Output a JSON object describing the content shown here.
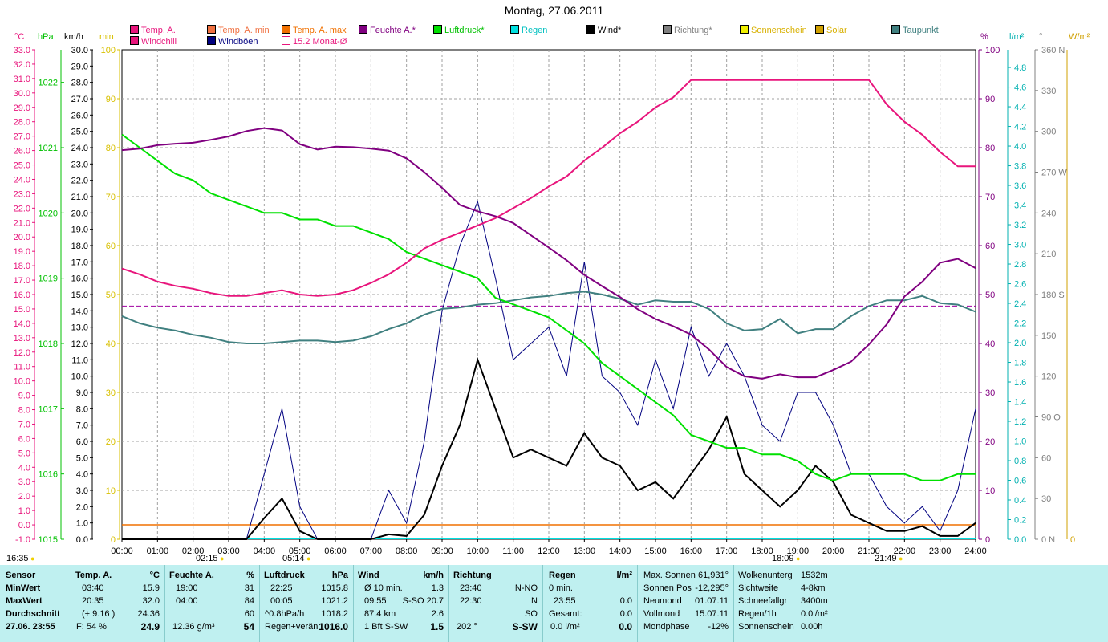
{
  "title": "Montag, 27.06.2011",
  "legend": [
    {
      "label": "Temp. A.",
      "color": "#e8157c"
    },
    {
      "label": "Temp. A. min",
      "color": "#f07040"
    },
    {
      "label": "Temp. A. max",
      "color": "#f07000"
    },
    {
      "label": "Feuchte A.*",
      "color": "#800080"
    },
    {
      "label": "Luftdruck*",
      "color": "#00e000"
    },
    {
      "label": "Regen",
      "color": "#00e0e0"
    },
    {
      "label": "Wind*",
      "color": "#000000"
    },
    {
      "label": "Richtung*",
      "color": "#808080"
    },
    {
      "label": "Sonnenschein",
      "color": "#f0f000"
    },
    {
      "label": "Solar",
      "color": "#d0a000"
    },
    {
      "label": "Taupunkt",
      "color": "#408080"
    },
    {
      "label": "Windchill",
      "color": "#e8157c"
    },
    {
      "label": "Windböen",
      "color": "#000080"
    },
    {
      "label": "15.2 Monat-Ø",
      "color": "#ffffff"
    }
  ],
  "units": {
    "c": "°C",
    "hpa": "hPa",
    "kmh": "km/h",
    "min": "min",
    "pct": "%",
    "lm2": "l/m²",
    "deg": "°",
    "wm2": "W/m²"
  },
  "axes": {
    "temp": [
      "33.0",
      "32.0",
      "31.0",
      "30.0",
      "29.0",
      "28.0",
      "27.0",
      "26.0",
      "25.0",
      "24.0",
      "23.0",
      "22.0",
      "21.0",
      "20.0",
      "19.0",
      "18.0",
      "17.0",
      "16.0",
      "15.0",
      "14.0",
      "13.0",
      "12.0",
      "11.0",
      "10.0",
      "9.0",
      "8.0",
      "7.0",
      "6.0",
      "5.0",
      "4.0",
      "3.0",
      "2.0",
      "1.0",
      "0.0",
      "-1.0"
    ],
    "hpa": [
      "1022",
      "1021",
      "1020",
      "1019",
      "1018",
      "1017",
      "1016",
      "1015"
    ],
    "kmh": [
      "30.0",
      "29.0",
      "28.0",
      "27.0",
      "26.0",
      "25.0",
      "24.0",
      "23.0",
      "22.0",
      "21.0",
      "20.0",
      "19.0",
      "18.0",
      "17.0",
      "16.0",
      "15.0",
      "14.0",
      "13.0",
      "12.0",
      "11.0",
      "10.0",
      "9.0",
      "8.0",
      "7.0",
      "6.0",
      "5.0",
      "4.0",
      "3.0",
      "2.0",
      "1.0",
      "0.0"
    ],
    "minutes": [
      "100",
      "90",
      "80",
      "70",
      "60",
      "50",
      "40",
      "30",
      "20",
      "10",
      "0"
    ],
    "pct": [
      "100",
      "90",
      "80",
      "70",
      "60",
      "50",
      "40",
      "30",
      "20",
      "10",
      "0"
    ],
    "rain": [
      "4.8",
      "4.6",
      "4.4",
      "4.2",
      "4.0",
      "3.8",
      "3.6",
      "3.4",
      "3.2",
      "3.0",
      "2.8",
      "2.6",
      "2.4",
      "2.2",
      "2.0",
      "1.8",
      "1.6",
      "1.4",
      "1.2",
      "1.0",
      "0.8",
      "0.6",
      "0.4",
      "0.2",
      "0.0"
    ],
    "deg": [
      "360 N",
      "330",
      "300",
      "270 W",
      "240",
      "210",
      "180 S",
      "150",
      "120",
      "90  O",
      "60",
      "30",
      "0    N"
    ],
    "wm2": [
      "0"
    ],
    "x": [
      "00:00",
      "01:00",
      "02:00",
      "03:00",
      "04:00",
      "05:00",
      "06:00",
      "07:00",
      "08:00",
      "09:00",
      "10:00",
      "11:00",
      "12:00",
      "13:00",
      "14:00",
      "15:00",
      "16:00",
      "17:00",
      "18:00",
      "19:00",
      "20:00",
      "21:00",
      "22:00",
      "23:00",
      "24:00"
    ]
  },
  "sun_markers": [
    "16:35",
    "02:15",
    "05:14",
    "18:09",
    "21:49"
  ],
  "panel": {
    "rowlabels": [
      "Sensor",
      "MinWert",
      "MaxWert",
      "Durchschnitt",
      "27.06. 23:55"
    ],
    "temp": {
      "h": "Temp. A.",
      "u": "°C",
      "r1": [
        "03:40",
        "15.9"
      ],
      "r2": [
        "20:35",
        "32.0"
      ],
      "r3": [
        "(+ 9.16 )",
        "24.36"
      ],
      "r4": [
        "F: 54 %",
        "24.9"
      ]
    },
    "hum": {
      "h": "Feuchte A.",
      "u": "%",
      "r1": [
        "19:00",
        "31"
      ],
      "r2": [
        "04:00",
        "84"
      ],
      "r3": [
        "",
        "60"
      ],
      "r4": [
        "12.36 g/m³",
        "54"
      ]
    },
    "press": {
      "h": "Luftdruck",
      "u": "hPa",
      "r1": [
        "22:25",
        "1015.8"
      ],
      "r2": [
        "00:05",
        "1021.2"
      ],
      "r3": [
        "^0.8hPa/h",
        "1018.2"
      ],
      "r4": [
        "Regen+verän",
        "1016.0"
      ]
    },
    "wind": {
      "h": "Wind",
      "u": "km/h",
      "r1": [
        "Ø 10 min.",
        "1.3"
      ],
      "r2": [
        "09:55",
        "S-SO 20.7"
      ],
      "r3": [
        "87.4 km",
        "2.6"
      ],
      "r4": [
        "1 Bft S-SW",
        "1.5"
      ]
    },
    "dir": {
      "h": "Richtung",
      "r1": [
        "23:40",
        "N-NO"
      ],
      "r2": [
        "22:30",
        "N"
      ],
      "r3": [
        "",
        "SO"
      ],
      "r4": [
        "202 °",
        "S-SW"
      ]
    },
    "rain": {
      "h": "Regen",
      "u": "l/m²",
      "r1": [
        "0 min.",
        ""
      ],
      "r2": [
        "23:55",
        "0.0"
      ],
      "r3": [
        "Gesamt:",
        "0.0"
      ],
      "r4": [
        "0.0 l/m²",
        "0.0"
      ]
    },
    "astro": [
      [
        "Max. Sonnen",
        "61,931°"
      ],
      [
        "Sonnen Pos",
        "-12,295°"
      ],
      [
        "Neumond",
        "01.07.11"
      ],
      [
        "Vollmond",
        "15.07.11"
      ],
      [
        "Mondphase",
        "-12%"
      ]
    ],
    "misc": [
      [
        "Wolkenunterg",
        "1532m"
      ],
      [
        "Sichtweite",
        "4-8km"
      ],
      [
        "Schneefallgr",
        "3400m"
      ],
      [
        "Regen/1h",
        "0.0l/m²"
      ],
      [
        "Sonnenschein",
        "0.00h"
      ]
    ]
  },
  "chart_data": {
    "type": "line",
    "title": "Montag, 27.06.2011",
    "x_hours": [
      0,
      0.5,
      1,
      1.5,
      2,
      2.5,
      3,
      3.5,
      4,
      4.5,
      5,
      5.5,
      6,
      6.5,
      7,
      7.5,
      8,
      8.5,
      9,
      9.5,
      10,
      10.5,
      11,
      11.5,
      12,
      12.5,
      13,
      13.5,
      14,
      14.5,
      15,
      15.5,
      16,
      16.5,
      17,
      17.5,
      18,
      18.5,
      19,
      19.5,
      20,
      20.5,
      21,
      21.5,
      22,
      22.5,
      23,
      23.5,
      24
    ],
    "series": [
      {
        "name": "Temp. A.",
        "unit": "°C",
        "color": "#e8157c",
        "values": [
          17.8,
          17.4,
          16.9,
          16.6,
          16.4,
          16.1,
          15.9,
          15.9,
          16.1,
          16.3,
          16.0,
          15.9,
          16.0,
          16.3,
          16.8,
          17.4,
          18.2,
          19.2,
          19.8,
          20.3,
          20.8,
          21.3,
          22.0,
          22.7,
          23.5,
          24.2,
          25.3,
          26.2,
          27.2,
          28.0,
          29.0,
          29.7,
          30.9,
          30.9,
          30.9,
          30.9,
          30.9,
          30.9,
          30.9,
          30.9,
          30.9,
          30.9,
          30.9,
          29.2,
          28.0,
          27.1,
          25.9,
          24.9,
          24.9
        ]
      },
      {
        "name": "Feuchte A.*",
        "unit": "%",
        "color": "#800080",
        "values": [
          79.5,
          79.8,
          80.5,
          80.8,
          81.0,
          81.6,
          82.3,
          83.4,
          84.0,
          83.5,
          80.7,
          79.6,
          80.2,
          80.1,
          79.8,
          79.4,
          77.8,
          75.0,
          71.8,
          68.3,
          67.0,
          66.0,
          64.6,
          62.1,
          59.6,
          57.0,
          54.0,
          51.7,
          49.5,
          47.0,
          45.0,
          43.5,
          41.8,
          38.8,
          35.2,
          33.3,
          32.8,
          33.7,
          33.1,
          33.1,
          34.6,
          36.3,
          39.8,
          43.9,
          49.6,
          52.6,
          56.5,
          57.3,
          55.4
        ]
      },
      {
        "name": "Luftdruck*",
        "unit": "hPa",
        "color": "#00e000",
        "values": [
          1021.2,
          1021.0,
          1020.8,
          1020.6,
          1020.5,
          1020.3,
          1020.2,
          1020.1,
          1020.0,
          1020.0,
          1019.9,
          1019.9,
          1019.8,
          1019.8,
          1019.7,
          1019.6,
          1019.4,
          1019.3,
          1019.2,
          1019.1,
          1019.0,
          1018.7,
          1018.6,
          1018.5,
          1018.4,
          1018.2,
          1018.0,
          1017.7,
          1017.5,
          1017.3,
          1017.1,
          1016.9,
          1016.6,
          1016.5,
          1016.4,
          1016.4,
          1016.3,
          1016.3,
          1016.2,
          1016.0,
          1015.9,
          1016.0,
          1016.0,
          1016.0,
          1016.0,
          1015.9,
          1015.9,
          1016.0,
          1016.0
        ]
      },
      {
        "name": "Taupunkt",
        "unit": "°C",
        "color": "#408080",
        "values": [
          14.5,
          14.0,
          13.7,
          13.5,
          13.2,
          13.0,
          12.7,
          12.6,
          12.6,
          12.7,
          12.8,
          12.8,
          12.7,
          12.8,
          13.1,
          13.6,
          14.0,
          14.6,
          15.0,
          15.1,
          15.3,
          15.4,
          15.6,
          15.8,
          15.9,
          16.1,
          16.2,
          16.0,
          15.7,
          15.3,
          15.6,
          15.5,
          15.5,
          15.0,
          14.0,
          13.5,
          13.6,
          14.3,
          13.3,
          13.6,
          13.6,
          14.5,
          15.2,
          15.6,
          15.6,
          15.9,
          15.4,
          15.3,
          14.8
        ]
      },
      {
        "name": "Wind*",
        "unit": "km/h",
        "color": "#000000",
        "values": [
          0,
          0,
          0,
          0,
          0,
          0,
          0,
          0,
          1.3,
          2.5,
          0.5,
          0,
          0,
          0,
          0,
          0.3,
          0.2,
          1.5,
          4.5,
          7.0,
          11.0,
          8.0,
          5.0,
          5.5,
          5.0,
          4.5,
          6.5,
          5.0,
          4.5,
          3.0,
          3.5,
          2.5,
          4.0,
          5.5,
          7.5,
          4.0,
          3.0,
          2.0,
          3.0,
          4.5,
          3.5,
          1.5,
          1.0,
          0.5,
          0.5,
          0.8,
          0.2,
          0.2,
          1.0
        ]
      },
      {
        "name": "Windböen",
        "unit": "km/h",
        "color": "#000080",
        "values": [
          0,
          0,
          0,
          0,
          0,
          0,
          0,
          0,
          4.0,
          8.0,
          2.0,
          0,
          0,
          0,
          0,
          3.0,
          1.0,
          6.0,
          14.0,
          18.0,
          20.7,
          16.0,
          11.0,
          12.0,
          13.0,
          10.0,
          17.0,
          10.0,
          9.0,
          7.0,
          11.0,
          8.0,
          13.0,
          10.0,
          12.0,
          10.0,
          7.0,
          6.0,
          9.0,
          9.0,
          7.0,
          4.0,
          4.0,
          2.0,
          1.0,
          2.0,
          0.5,
          3.0,
          8.0
        ]
      }
    ],
    "month_avg_temp": 15.2,
    "xlabel": "",
    "temp_range": [
      -1.0,
      33.0
    ],
    "hpa_range": [
      1015,
      1022.5
    ],
    "kmh_range": [
      0,
      30
    ],
    "pct_range": [
      0,
      100
    ],
    "grid": true
  }
}
